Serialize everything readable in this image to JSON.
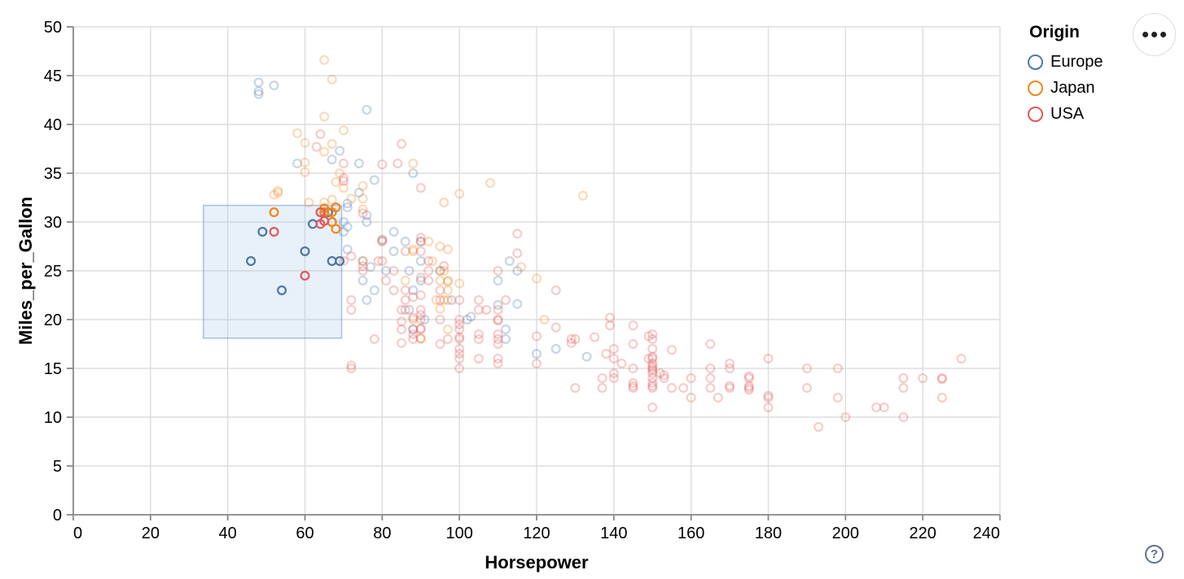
{
  "chart_data": {
    "type": "scatter",
    "title": "",
    "xlabel": "Horsepower",
    "ylabel": "Miles_per_Gallon",
    "xlim": [
      0,
      240
    ],
    "ylim": [
      0,
      50
    ],
    "xticks": [
      0,
      20,
      40,
      60,
      80,
      100,
      120,
      140,
      160,
      180,
      200,
      220,
      240
    ],
    "yticks": [
      0,
      5,
      10,
      15,
      20,
      25,
      30,
      35,
      40,
      45,
      50
    ],
    "grid": true,
    "legend_position": "top-right",
    "legend": {
      "title": "Origin",
      "entries": [
        {
          "label": "Europe",
          "color": "#4c78a8"
        },
        {
          "label": "Japan",
          "color": "#f58518"
        },
        {
          "label": "USA",
          "color": "#e45756"
        }
      ]
    },
    "brush_selection": {
      "x": [
        33.7,
        69.5
      ],
      "y": [
        18.1,
        31.7
      ]
    },
    "point_style": {
      "radius": 4.9,
      "stroke_width": 2.2,
      "faded_opacity": 0.3,
      "selected_opacity": 1
    },
    "series": [
      {
        "name": "Europe",
        "color": "#4c78a8",
        "points": [
          [
            46,
            26
          ],
          [
            49,
            29
          ],
          [
            54,
            23
          ],
          [
            60,
            27
          ],
          [
            62,
            29.8
          ],
          [
            66,
            31
          ],
          [
            67,
            30
          ],
          [
            67,
            26
          ],
          [
            69,
            26
          ],
          [
            48,
            43.1
          ],
          [
            48,
            44.3
          ],
          [
            48,
            43.4
          ],
          [
            52,
            44
          ],
          [
            76,
            41.5
          ],
          [
            74,
            36
          ],
          [
            74,
            33
          ],
          [
            67,
            36.4
          ],
          [
            69,
            37.3
          ],
          [
            71,
            31.9
          ],
          [
            71,
            31.5
          ],
          [
            70,
            30
          ],
          [
            70,
            29
          ],
          [
            71,
            27.2
          ],
          [
            71,
            29.5
          ],
          [
            58,
            36
          ],
          [
            87,
            25
          ],
          [
            90,
            24
          ],
          [
            95,
            25
          ],
          [
            113,
            26
          ],
          [
            90,
            28
          ],
          [
            76,
            30
          ],
          [
            76,
            22
          ],
          [
            87,
            21
          ],
          [
            112,
            18
          ],
          [
            110,
            24
          ],
          [
            91,
            20
          ],
          [
            112,
            19
          ],
          [
            75,
            24
          ],
          [
            90,
            26
          ],
          [
            75,
            26
          ],
          [
            86,
            28
          ],
          [
            81,
            25
          ],
          [
            83,
            27
          ],
          [
            83,
            29
          ],
          [
            78,
            23
          ],
          [
            88,
            19
          ],
          [
            88,
            23
          ],
          [
            98,
            22
          ],
          [
            102,
            20
          ],
          [
            115,
            25
          ],
          [
            115,
            21.6
          ],
          [
            110,
            21.5
          ],
          [
            103,
            20.3
          ],
          [
            88,
            35
          ],
          [
            78,
            34.3
          ],
          [
            80,
            28.1
          ],
          [
            76,
            30.7
          ],
          [
            77,
            25.4
          ],
          [
            133,
            16.2
          ],
          [
            125,
            17
          ],
          [
            120,
            16.5
          ]
        ]
      },
      {
        "name": "Japan",
        "color": "#f58518",
        "points": [
          [
            52,
            31
          ],
          [
            65,
            31
          ],
          [
            65,
            31.4
          ],
          [
            67,
            31
          ],
          [
            67,
            30
          ],
          [
            68,
            31.5
          ],
          [
            68,
            29.3
          ],
          [
            95,
            24
          ],
          [
            88,
            27
          ],
          [
            88,
            27.2
          ],
          [
            95,
            25
          ],
          [
            69,
            35
          ],
          [
            97,
            19
          ],
          [
            92,
            28
          ],
          [
            97,
            23
          ],
          [
            94,
            22
          ],
          [
            90,
            18
          ],
          [
            88,
            20
          ],
          [
            122,
            20
          ],
          [
            65,
            32
          ],
          [
            96,
            25
          ],
          [
            96,
            22
          ],
          [
            97,
            24
          ],
          [
            53,
            33
          ],
          [
            53,
            33.2
          ],
          [
            86,
            24
          ],
          [
            93,
            26
          ],
          [
            61,
            32
          ],
          [
            70,
            39.4
          ],
          [
            60,
            36.1
          ],
          [
            60,
            35.1
          ],
          [
            52,
            32.8
          ],
          [
            70,
            33.5
          ],
          [
            95,
            27.5
          ],
          [
            97,
            22
          ],
          [
            75,
            31.3
          ],
          [
            97,
            27.2
          ],
          [
            95,
            21.1
          ],
          [
            97,
            23.9
          ],
          [
            65,
            37.2
          ],
          [
            60,
            38.1
          ],
          [
            58,
            39.1
          ],
          [
            65,
            40.8
          ],
          [
            65,
            46.6
          ],
          [
            67,
            44.6
          ],
          [
            132,
            32.7
          ],
          [
            100,
            23.7
          ],
          [
            72,
            32.4
          ],
          [
            68,
            34.1
          ],
          [
            75,
            33.7
          ],
          [
            75,
            32.4
          ],
          [
            116,
            25.4
          ],
          [
            120,
            24.2
          ],
          [
            88,
            36
          ],
          [
            96,
            32
          ],
          [
            67,
            38
          ],
          [
            108,
            34
          ],
          [
            100,
            32.9
          ],
          [
            75,
            26
          ],
          [
            67,
            32.3
          ]
        ]
      },
      {
        "name": "USA",
        "color": "#e45756",
        "points": [
          [
            52,
            29
          ],
          [
            60,
            24.5
          ],
          [
            64,
            31
          ],
          [
            64,
            29.8
          ],
          [
            65,
            30.1
          ],
          [
            130,
            18
          ],
          [
            165,
            15
          ],
          [
            150,
            18
          ],
          [
            150,
            16
          ],
          [
            140,
            17
          ],
          [
            198,
            15
          ],
          [
            220,
            14
          ],
          [
            215,
            14
          ],
          [
            225,
            14
          ],
          [
            190,
            15
          ],
          [
            170,
            15
          ],
          [
            160,
            14
          ],
          [
            150,
            15
          ],
          [
            225,
            13.9
          ],
          [
            95,
            22
          ],
          [
            97,
            18
          ],
          [
            85,
            21
          ],
          [
            90,
            21
          ],
          [
            215,
            10
          ],
          [
            200,
            10
          ],
          [
            210,
            11
          ],
          [
            193,
            9
          ],
          [
            90,
            28
          ],
          [
            100,
            19
          ],
          [
            105,
            16
          ],
          [
            100,
            17
          ],
          [
            88,
            19
          ],
          [
            100,
            18
          ],
          [
            165,
            14
          ],
          [
            175,
            14
          ],
          [
            153,
            14
          ],
          [
            150,
            14
          ],
          [
            180,
            12
          ],
          [
            170,
            13
          ],
          [
            175,
            13
          ],
          [
            110,
            18
          ],
          [
            72,
            22
          ],
          [
            100,
            19.5
          ],
          [
            88,
            18
          ],
          [
            86,
            23
          ],
          [
            90,
            20
          ],
          [
            86,
            21
          ],
          [
            165,
            13
          ],
          [
            175,
            14.2
          ],
          [
            150,
            15.2
          ],
          [
            153,
            14.3
          ],
          [
            150,
            17
          ],
          [
            208,
            11
          ],
          [
            155,
            13
          ],
          [
            160,
            12
          ],
          [
            190,
            13
          ],
          [
            145,
            13
          ],
          [
            137,
            13
          ],
          [
            150,
            14.5
          ],
          [
            86,
            22
          ],
          [
            80,
            28
          ],
          [
            175,
            13.2
          ],
          [
            145,
            13.2
          ],
          [
            137,
            14
          ],
          [
            198,
            12
          ],
          [
            150,
            13
          ],
          [
            158,
            13
          ],
          [
            150,
            14.8
          ],
          [
            215,
            13
          ],
          [
            225,
            12
          ],
          [
            175,
            12.8
          ],
          [
            105,
            18
          ],
          [
            100,
            16
          ],
          [
            88,
            18.5
          ],
          [
            95,
            23
          ],
          [
            150,
            11
          ],
          [
            167,
            12
          ],
          [
            170,
            13.2
          ],
          [
            180,
            12.2
          ],
          [
            100,
            18.2
          ],
          [
            72,
            21
          ],
          [
            85,
            19
          ],
          [
            107,
            21
          ],
          [
            145,
            15
          ],
          [
            230,
            16
          ],
          [
            150,
            15.5
          ],
          [
            180,
            11
          ],
          [
            95,
            20
          ],
          [
            100,
            15
          ],
          [
            80,
            26
          ],
          [
            75,
            25
          ],
          [
            100,
            16.5
          ],
          [
            110,
            16
          ],
          [
            105,
            18.5
          ],
          [
            140,
            16
          ],
          [
            140,
            14
          ],
          [
            150,
            13.2
          ],
          [
            140,
            14.5
          ],
          [
            80,
            28.2
          ],
          [
            78,
            18
          ],
          [
            110,
            18.5
          ],
          [
            95,
            17.5
          ],
          [
            110,
            21
          ],
          [
            110,
            20
          ],
          [
            129,
            18
          ],
          [
            83,
            23
          ],
          [
            100,
            20
          ],
          [
            105,
            21
          ],
          [
            83,
            25
          ],
          [
            90,
            19
          ],
          [
            145,
            13.5
          ],
          [
            130,
            13
          ],
          [
            150,
            13.5
          ],
          [
            96,
            25.5
          ],
          [
            72,
            26.5
          ],
          [
            90,
            22.5
          ],
          [
            70,
            26
          ],
          [
            100,
            22
          ],
          [
            105,
            22
          ],
          [
            81,
            24
          ],
          [
            92,
            25
          ],
          [
            79,
            26
          ],
          [
            75,
            25.5
          ],
          [
            145,
            17.5
          ],
          [
            150,
            16.2
          ],
          [
            120,
            15.5
          ],
          [
            152,
            14.5
          ],
          [
            170,
            15.5
          ],
          [
            165,
            17.5
          ],
          [
            149,
            16
          ],
          [
            180,
            16
          ],
          [
            110,
            17.5
          ],
          [
            90,
            20.5
          ],
          [
            110,
            19.9
          ],
          [
            90,
            18.1
          ],
          [
            70,
            34.2
          ],
          [
            70,
            34.5
          ],
          [
            75,
            30.9
          ],
          [
            84,
            36
          ],
          [
            85,
            38
          ],
          [
            90,
            33.5
          ],
          [
            90,
            28.4
          ],
          [
            115,
            28.8
          ],
          [
            115,
            26.8
          ],
          [
            110,
            25
          ],
          [
            92,
            26
          ],
          [
            112,
            22
          ],
          [
            90,
            27
          ],
          [
            86,
            27
          ],
          [
            85,
            17.6
          ],
          [
            88,
            20.2
          ],
          [
            92,
            24
          ],
          [
            90,
            24.3
          ],
          [
            90,
            19.1
          ],
          [
            85,
            19.8
          ],
          [
            88,
            22.3
          ],
          [
            64,
            39
          ],
          [
            63,
            37.7
          ],
          [
            70,
            36
          ],
          [
            80,
            35.9
          ],
          [
            72,
            15
          ],
          [
            72,
            15.3
          ],
          [
            139,
            20.2
          ],
          [
            139,
            19.4
          ],
          [
            145,
            19.4
          ],
          [
            149,
            18.3
          ],
          [
            150,
            18.5
          ],
          [
            135,
            18.2
          ],
          [
            138,
            16.5
          ],
          [
            155,
            16.9
          ],
          [
            142,
            15.5
          ],
          [
            125,
            19.2
          ],
          [
            125,
            23
          ],
          [
            129,
            17.6
          ],
          [
            120,
            18.3
          ],
          [
            110,
            15.5
          ]
        ]
      }
    ]
  },
  "controls": {
    "options_icon": "ellipsis-icon",
    "help_icon": "question-mark-icon",
    "help_glyph": "?"
  },
  "style_colors": {
    "grid": "#dddddd",
    "axis": "#888888",
    "text": "#000000",
    "brush_fill": "rgba(173,205,235,0.28)",
    "brush_stroke": "rgba(120,160,215,0.6)",
    "button_border": "#dddddd",
    "button_dots": "#222222",
    "help": "#5c6f91"
  }
}
